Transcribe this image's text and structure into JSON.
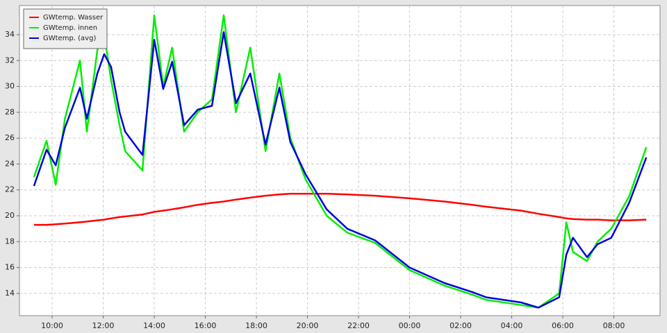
{
  "chart_data": {
    "type": "line",
    "x": [
      9.29,
      9.78,
      10.14,
      10.5,
      11.09,
      11.36,
      11.77,
      12.04,
      12.31,
      12.64,
      12.86,
      13.54,
      14.0,
      14.35,
      14.7,
      15.17,
      15.7,
      16.26,
      16.72,
      17.2,
      17.76,
      18.36,
      18.9,
      19.33,
      19.93,
      20.75,
      21.56,
      22.65,
      24.0,
      25.37,
      26.46,
      27.0,
      28.37,
      29.05,
      29.86,
      30.14,
      30.4,
      30.95,
      31.36,
      31.9,
      32.6,
      33.27
    ],
    "series": [
      {
        "name": "GWtemp. Wasser",
        "color": "#ff0000",
        "values": [
          19.3,
          19.3,
          19.35,
          19.4,
          19.5,
          19.55,
          19.65,
          19.7,
          19.8,
          19.9,
          19.95,
          20.1,
          20.3,
          20.4,
          20.5,
          20.65,
          20.85,
          21.0,
          21.1,
          21.25,
          21.4,
          21.55,
          21.65,
          21.7,
          21.7,
          21.7,
          21.65,
          21.55,
          21.35,
          21.1,
          20.85,
          20.7,
          20.4,
          20.15,
          19.9,
          19.8,
          19.75,
          19.7,
          19.7,
          19.65,
          19.65,
          19.7
        ]
      },
      {
        "name": "GWtemp. innen",
        "color": "#00ee00",
        "values": [
          23,
          25.8,
          22.4,
          27.5,
          32,
          26.5,
          32.8,
          34,
          30.5,
          27,
          25,
          23.5,
          35.5,
          30,
          33,
          26.5,
          28,
          29,
          35.5,
          28,
          33,
          25,
          31,
          26,
          22.8,
          20,
          18.7,
          17.9,
          15.8,
          14.6,
          13.9,
          13.5,
          13.1,
          12.9,
          14,
          19.5,
          17.2,
          16.5,
          18,
          19,
          21.5,
          25.3
        ]
      },
      {
        "name": "GWtemp. (avg)",
        "color": "#0000dd",
        "values": [
          22.3,
          25.1,
          23.9,
          26.8,
          29.9,
          27.5,
          31,
          32.5,
          31.5,
          28,
          26.5,
          24.7,
          33.6,
          29.8,
          31.9,
          27,
          28.2,
          28.5,
          34.2,
          28.7,
          31,
          25.5,
          29.9,
          25.7,
          23.2,
          20.5,
          19,
          18.1,
          16,
          14.8,
          14.1,
          13.7,
          13.3,
          12.9,
          13.7,
          17,
          18.3,
          16.8,
          17.8,
          18.3,
          21,
          24.5
        ]
      }
    ],
    "xlim": [
      8.72,
      33.81
    ],
    "xticks": [
      {
        "value": 10,
        "label": "10:00"
      },
      {
        "value": 12,
        "label": "12:00"
      },
      {
        "value": 14,
        "label": "14:00"
      },
      {
        "value": 16,
        "label": "16:00"
      },
      {
        "value": 18,
        "label": "18:00"
      },
      {
        "value": 20,
        "label": "20:00"
      },
      {
        "value": 22,
        "label": "22:00"
      },
      {
        "value": 24,
        "label": "00:00"
      },
      {
        "value": 26,
        "label": "02:00"
      },
      {
        "value": 28,
        "label": "04:00"
      },
      {
        "value": 30,
        "label": "06:00"
      },
      {
        "value": 32,
        "label": "08:00"
      }
    ],
    "ylim": [
      12.28,
      36.25
    ],
    "yticks": [
      14,
      16,
      18,
      20,
      22,
      24,
      26,
      28,
      30,
      32,
      34
    ],
    "grid": true,
    "legend": "top-left"
  }
}
